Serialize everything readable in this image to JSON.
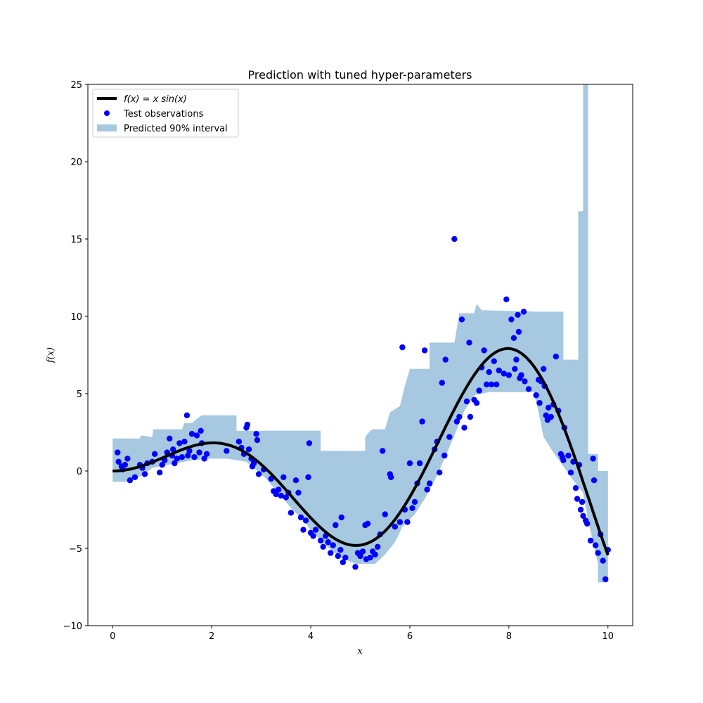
{
  "chart_data": {
    "type": "scatter",
    "title": "Prediction with tuned hyper-parameters",
    "xlabel": "x",
    "ylabel": "f(x)",
    "xlim": [
      -0.5,
      10.5
    ],
    "ylim": [
      -10,
      25
    ],
    "xticks": [
      0,
      2,
      4,
      6,
      8,
      10
    ],
    "yticks": [
      -10,
      -5,
      0,
      5,
      10,
      15,
      20,
      25
    ],
    "grid": false,
    "legend_position": "upper left",
    "legend": [
      {
        "label": "f(x) = x sin(x)",
        "kind": "line",
        "color": "#000000"
      },
      {
        "label": "Test observations",
        "kind": "marker",
        "color": "#0000ff"
      },
      {
        "label": "Predicted 90% interval",
        "kind": "patch",
        "color": "#a6c8e0"
      }
    ],
    "colors": {
      "curve": "#000000",
      "points": "#0000ff",
      "band": "#a6c8e0"
    },
    "series": [
      {
        "name": "f(x) = x sin(x)",
        "type": "line",
        "function": "x*sin(x)",
        "x_range": [
          0,
          10
        ]
      },
      {
        "name": "Predicted 90% interval",
        "type": "area",
        "upper": [
          [
            0,
            2.1
          ],
          [
            0.55,
            2.1
          ],
          [
            0.57,
            2.3
          ],
          [
            0.8,
            2.2
          ],
          [
            0.82,
            2.7
          ],
          [
            1.0,
            2.7
          ],
          [
            1.4,
            2.7
          ],
          [
            1.45,
            3.1
          ],
          [
            1.6,
            3.1
          ],
          [
            1.75,
            3.5
          ],
          [
            1.8,
            3.6
          ],
          [
            2.5,
            3.6
          ],
          [
            2.5,
            2.6
          ],
          [
            4.2,
            2.6
          ],
          [
            4.2,
            1.3
          ],
          [
            5.1,
            1.3
          ],
          [
            5.1,
            2.2
          ],
          [
            5.2,
            2.6
          ],
          [
            5.25,
            2.7
          ],
          [
            5.5,
            2.7
          ],
          [
            5.6,
            3.8
          ],
          [
            5.8,
            4.2
          ],
          [
            5.9,
            5.5
          ],
          [
            6.0,
            6.6
          ],
          [
            6.4,
            6.6
          ],
          [
            6.4,
            8.3
          ],
          [
            6.9,
            8.3
          ],
          [
            7.0,
            10.2
          ],
          [
            7.3,
            10.2
          ],
          [
            7.35,
            10.8
          ],
          [
            7.45,
            10.4
          ],
          [
            8.6,
            10.3
          ],
          [
            9.1,
            10.3
          ],
          [
            9.1,
            7.2
          ],
          [
            9.4,
            7.2
          ],
          [
            9.4,
            16.8
          ],
          [
            9.5,
            16.8
          ],
          [
            9.5,
            25
          ],
          [
            9.6,
            25
          ],
          [
            9.6,
            1.1
          ],
          [
            9.8,
            1.1
          ],
          [
            9.8,
            0.0
          ],
          [
            10.0,
            0.0
          ]
        ],
        "lower": [
          [
            0,
            -0.7
          ],
          [
            0.3,
            -0.7
          ],
          [
            0.4,
            -0.5
          ],
          [
            0.6,
            -0.3
          ],
          [
            0.8,
            0.2
          ],
          [
            1.1,
            0.4
          ],
          [
            1.3,
            0.5
          ],
          [
            1.6,
            0.7
          ],
          [
            2.0,
            0.8
          ],
          [
            2.3,
            0.8
          ],
          [
            2.7,
            0.6
          ],
          [
            2.85,
            0.2
          ],
          [
            3.1,
            -0.5
          ],
          [
            3.4,
            -1.6
          ],
          [
            3.6,
            -2.4
          ],
          [
            3.85,
            -3.2
          ],
          [
            4.0,
            -3.8
          ],
          [
            4.3,
            -4.8
          ],
          [
            4.6,
            -5.6
          ],
          [
            4.9,
            -6.0
          ],
          [
            5.3,
            -6.0
          ],
          [
            5.5,
            -5.4
          ],
          [
            5.7,
            -4.6
          ],
          [
            5.85,
            -3.6
          ],
          [
            6.1,
            -2.8
          ],
          [
            6.3,
            -1.8
          ],
          [
            6.5,
            -0.6
          ],
          [
            6.7,
            0.8
          ],
          [
            6.9,
            2.3
          ],
          [
            7.1,
            3.9
          ],
          [
            7.3,
            4.9
          ],
          [
            7.6,
            5.1
          ],
          [
            8.5,
            5.1
          ],
          [
            8.6,
            3.8
          ],
          [
            8.7,
            2.2
          ],
          [
            8.9,
            1.2
          ],
          [
            9.1,
            0.3
          ],
          [
            9.3,
            -0.6
          ],
          [
            9.5,
            -1.4
          ],
          [
            9.6,
            -3.2
          ],
          [
            9.8,
            -6.0
          ],
          [
            9.8,
            -7.2
          ],
          [
            10.0,
            -7.2
          ]
        ]
      },
      {
        "name": "Test observations",
        "type": "scatter",
        "points": [
          [
            0.1,
            1.2
          ],
          [
            0.12,
            0.6
          ],
          [
            0.18,
            0.3
          ],
          [
            0.2,
            0.1
          ],
          [
            0.25,
            0.4
          ],
          [
            0.3,
            0.8
          ],
          [
            0.35,
            -0.6
          ],
          [
            0.45,
            -0.4
          ],
          [
            0.55,
            0.4
          ],
          [
            0.6,
            0.2
          ],
          [
            0.65,
            -0.2
          ],
          [
            0.7,
            0.5
          ],
          [
            0.8,
            0.6
          ],
          [
            0.85,
            1.1
          ],
          [
            0.95,
            -0.1
          ],
          [
            1.0,
            0.4
          ],
          [
            1.05,
            0.7
          ],
          [
            1.1,
            1.2
          ],
          [
            1.15,
            2.1
          ],
          [
            1.2,
            1.0
          ],
          [
            1.22,
            1.4
          ],
          [
            1.25,
            0.5
          ],
          [
            1.3,
            0.8
          ],
          [
            1.35,
            1.8
          ],
          [
            1.4,
            0.9
          ],
          [
            1.45,
            1.9
          ],
          [
            1.5,
            3.6
          ],
          [
            1.52,
            1.0
          ],
          [
            1.55,
            1.3
          ],
          [
            1.6,
            2.4
          ],
          [
            1.65,
            0.9
          ],
          [
            1.7,
            2.3
          ],
          [
            1.75,
            1.2
          ],
          [
            1.78,
            2.6
          ],
          [
            1.8,
            1.8
          ],
          [
            1.85,
            0.8
          ],
          [
            1.9,
            1.1
          ],
          [
            2.3,
            1.3
          ],
          [
            2.55,
            1.9
          ],
          [
            2.6,
            1.5
          ],
          [
            2.65,
            1.1
          ],
          [
            2.7,
            2.8
          ],
          [
            2.72,
            3.0
          ],
          [
            2.75,
            1.4
          ],
          [
            2.8,
            0.8
          ],
          [
            2.82,
            0.3
          ],
          [
            2.85,
            0.5
          ],
          [
            2.9,
            2.4
          ],
          [
            2.92,
            2.0
          ],
          [
            2.95,
            -0.2
          ],
          [
            3.05,
            0.1
          ],
          [
            3.2,
            -0.5
          ],
          [
            3.25,
            -1.3
          ],
          [
            3.3,
            -1.5
          ],
          [
            3.35,
            -1.2
          ],
          [
            3.4,
            -1.6
          ],
          [
            3.45,
            -0.4
          ],
          [
            3.5,
            -1.7
          ],
          [
            3.55,
            -1.4
          ],
          [
            3.6,
            -2.7
          ],
          [
            3.7,
            -0.6
          ],
          [
            3.75,
            -1.4
          ],
          [
            3.8,
            -3.0
          ],
          [
            3.85,
            -3.8
          ],
          [
            3.9,
            -3.2
          ],
          [
            3.95,
            -0.4
          ],
          [
            3.97,
            1.8
          ],
          [
            4.0,
            -4.0
          ],
          [
            4.05,
            -4.2
          ],
          [
            4.1,
            -3.8
          ],
          [
            4.2,
            -4.5
          ],
          [
            4.25,
            -4.9
          ],
          [
            4.3,
            -4.2
          ],
          [
            4.35,
            -4.6
          ],
          [
            4.4,
            -5.3
          ],
          [
            4.45,
            -4.8
          ],
          [
            4.5,
            -3.5
          ],
          [
            4.55,
            -5.5
          ],
          [
            4.6,
            -5.1
          ],
          [
            4.62,
            -3.0
          ],
          [
            4.65,
            -5.9
          ],
          [
            4.7,
            -5.6
          ],
          [
            4.9,
            -6.2
          ],
          [
            4.95,
            -5.3
          ],
          [
            5.0,
            -5.5
          ],
          [
            5.05,
            -5.2
          ],
          [
            5.1,
            -3.5
          ],
          [
            5.12,
            -5.7
          ],
          [
            5.15,
            -3.4
          ],
          [
            5.2,
            -5.6
          ],
          [
            5.25,
            -5.2
          ],
          [
            5.3,
            -5.4
          ],
          [
            5.35,
            -4.9
          ],
          [
            5.4,
            -4.1
          ],
          [
            5.45,
            1.3
          ],
          [
            5.5,
            -2.8
          ],
          [
            5.6,
            -0.2
          ],
          [
            5.62,
            -0.4
          ],
          [
            5.7,
            -3.6
          ],
          [
            5.8,
            -3.3
          ],
          [
            5.85,
            8.0
          ],
          [
            5.9,
            -2.5
          ],
          [
            5.95,
            -3.3
          ],
          [
            6.0,
            0.5
          ],
          [
            6.05,
            -2.4
          ],
          [
            6.1,
            -2.0
          ],
          [
            6.15,
            -0.8
          ],
          [
            6.2,
            0.5
          ],
          [
            6.25,
            3.2
          ],
          [
            6.3,
            7.8
          ],
          [
            6.35,
            -1.2
          ],
          [
            6.4,
            -0.8
          ],
          [
            6.5,
            1.4
          ],
          [
            6.55,
            1.9
          ],
          [
            6.6,
            -0.1
          ],
          [
            6.65,
            5.7
          ],
          [
            6.7,
            1.0
          ],
          [
            6.72,
            7.2
          ],
          [
            6.8,
            2.2
          ],
          [
            6.9,
            15.0
          ],
          [
            6.95,
            3.2
          ],
          [
            7.0,
            3.5
          ],
          [
            7.05,
            9.8
          ],
          [
            7.1,
            2.8
          ],
          [
            7.15,
            4.5
          ],
          [
            7.2,
            8.3
          ],
          [
            7.22,
            3.5
          ],
          [
            7.3,
            4.6
          ],
          [
            7.35,
            4.4
          ],
          [
            7.4,
            5.2
          ],
          [
            7.45,
            6.7
          ],
          [
            7.5,
            7.8
          ],
          [
            7.55,
            5.6
          ],
          [
            7.6,
            6.4
          ],
          [
            7.65,
            5.6
          ],
          [
            7.7,
            7.1
          ],
          [
            7.75,
            5.6
          ],
          [
            7.8,
            6.5
          ],
          [
            7.9,
            6.3
          ],
          [
            7.95,
            11.1
          ],
          [
            8.0,
            6.2
          ],
          [
            8.05,
            9.8
          ],
          [
            8.1,
            8.6
          ],
          [
            8.12,
            6.6
          ],
          [
            8.15,
            7.2
          ],
          [
            8.18,
            10.1
          ],
          [
            8.2,
            9.0
          ],
          [
            8.22,
            6.0
          ],
          [
            8.25,
            6.2
          ],
          [
            8.3,
            10.3
          ],
          [
            8.32,
            5.8
          ],
          [
            8.4,
            5.3
          ],
          [
            8.55,
            4.9
          ],
          [
            8.6,
            5.9
          ],
          [
            8.62,
            4.4
          ],
          [
            8.65,
            5.8
          ],
          [
            8.7,
            6.6
          ],
          [
            8.72,
            5.5
          ],
          [
            8.75,
            3.6
          ],
          [
            8.78,
            3.3
          ],
          [
            8.8,
            4.1
          ],
          [
            8.85,
            3.5
          ],
          [
            8.9,
            4.3
          ],
          [
            8.95,
            7.4
          ],
          [
            9.0,
            3.9
          ],
          [
            9.05,
            1.1
          ],
          [
            9.08,
            0.9
          ],
          [
            9.1,
            0.7
          ],
          [
            9.12,
            2.8
          ],
          [
            9.2,
            1.0
          ],
          [
            9.25,
            -0.1
          ],
          [
            9.3,
            0.6
          ],
          [
            9.35,
            -1.1
          ],
          [
            9.38,
            -1.8
          ],
          [
            9.42,
            0.4
          ],
          [
            9.45,
            -2.5
          ],
          [
            9.48,
            -2.0
          ],
          [
            9.5,
            -2.9
          ],
          [
            9.55,
            -3.2
          ],
          [
            9.58,
            -3.4
          ],
          [
            9.65,
            -4.5
          ],
          [
            9.7,
            0.8
          ],
          [
            9.72,
            -0.6
          ],
          [
            9.75,
            -4.8
          ],
          [
            9.8,
            -5.3
          ],
          [
            9.85,
            -4.1
          ],
          [
            9.9,
            -5.8
          ],
          [
            9.95,
            -7.0
          ],
          [
            10.0,
            -5.1
          ]
        ]
      }
    ]
  }
}
